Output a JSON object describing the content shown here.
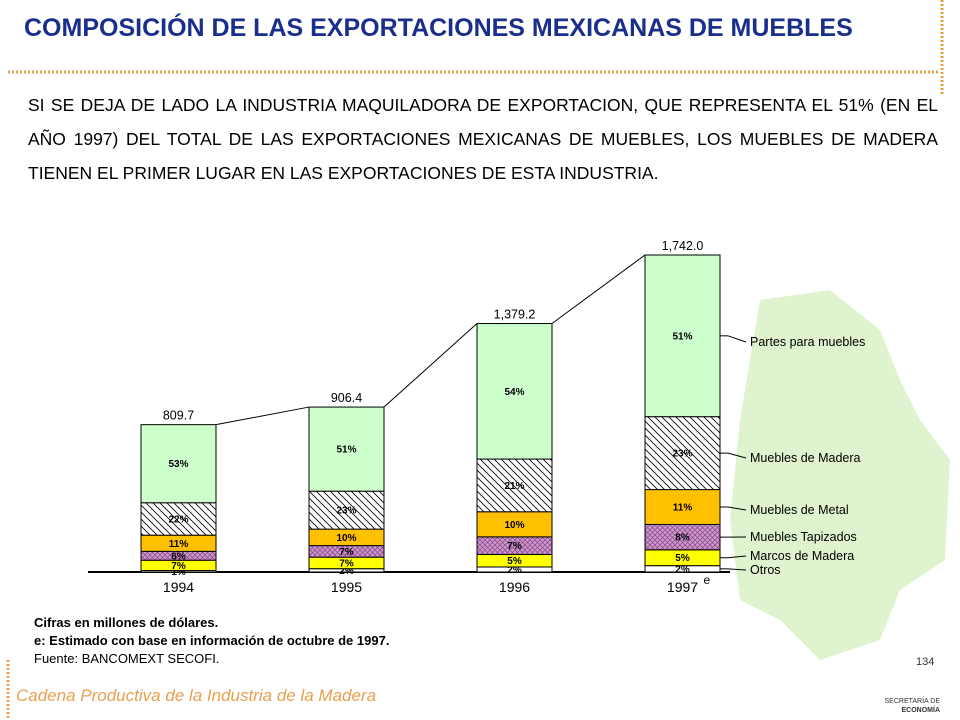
{
  "title": "COMPOSICIÓN DE LAS EXPORTACIONES MEXICANAS DE MUEBLES",
  "paragraph": "SI SE DEJA DE LADO LA INDUSTRIA MAQUILADORA DE EXPORTACION, QUE REPRESENTA EL 51% (EN EL AÑO 1997) DEL TOTAL DE LAS EXPORTACIONES MEXICANAS DE MUEBLES, LOS MUEBLES DE MADERA TIENEN EL PRIMER LUGAR EN LAS EXPORTACIONES DE ESTA INDUSTRIA.",
  "chart_data": {
    "type": "bar",
    "categories": [
      "1994",
      "1995",
      "1996",
      "1997"
    ],
    "estimate_marker": "e",
    "totals": [
      809.7,
      906.4,
      1379.2,
      1742.0
    ],
    "total_labels": [
      "809.7",
      "906.4",
      "1,379.2",
      "1,742.0"
    ],
    "series": [
      {
        "name": "Otros",
        "color": "#ffffff",
        "values": [
          1,
          2,
          2,
          2
        ],
        "value_labels": [
          "1%",
          "2%",
          "2%",
          "2%"
        ]
      },
      {
        "name": "Marcos de Madera",
        "color": "#ffff00",
        "values": [
          7,
          7,
          5,
          5
        ],
        "value_labels": [
          "7%",
          "7%",
          "5%",
          "5%"
        ]
      },
      {
        "name": "Muebles  Tapizados",
        "color": "#cc99cc",
        "pattern": "cross",
        "values": [
          6,
          7,
          7,
          8
        ],
        "value_labels": [
          "6%",
          "7%",
          "7%",
          "8%"
        ]
      },
      {
        "name": "Muebles de Metal",
        "color": "#ffc000",
        "values": [
          11,
          10,
          10,
          11
        ],
        "value_labels": [
          "11%",
          "10%",
          "10%",
          "11%"
        ]
      },
      {
        "name": "Muebles de Madera",
        "color": "#ffffff",
        "pattern": "diagonal",
        "values": [
          22,
          23,
          21,
          23
        ],
        "value_labels": [
          "22%",
          "23%",
          "21%",
          "23%"
        ]
      },
      {
        "name": "Partes para muebles",
        "color": "#ccffcc",
        "values": [
          53,
          51,
          54,
          51
        ],
        "value_labels": [
          "53%",
          "51%",
          "54%",
          "51%"
        ]
      }
    ]
  },
  "notes": [
    "Cifras en millones de dólares.",
    "e: Estimado con base en información de octubre de 1997.",
    "Fuente: BANCOMEXT SECOFI."
  ],
  "footer": "Cadena Productiva de la Industria de la Madera",
  "page_number": "134",
  "logo_text": [
    "SECRETARÍA DE",
    "ECONOMÍA"
  ]
}
